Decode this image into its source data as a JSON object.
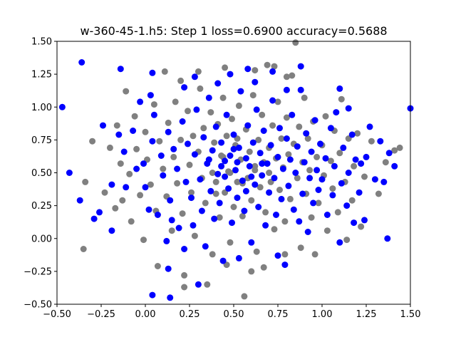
{
  "chart_data": {
    "type": "scatter",
    "title": "w-360-45-1.h5: Step 1 loss=0.6900 accuracy=0.5688",
    "xlabel": "",
    "ylabel": "",
    "xlim": [
      -0.5,
      1.5
    ],
    "ylim": [
      -0.5,
      1.5
    ],
    "x_ticks": [
      -0.5,
      -0.25,
      0.0,
      0.25,
      0.5,
      0.75,
      1.0,
      1.25,
      1.5
    ],
    "x_tick_labels": [
      "−0.50",
      "−0.25",
      "0.00",
      "0.25",
      "0.50",
      "0.75",
      "1.00",
      "1.25",
      "1.50"
    ],
    "y_ticks": [
      -0.5,
      -0.25,
      0.0,
      0.25,
      0.5,
      0.75,
      1.0,
      1.25,
      1.5
    ],
    "y_tick_labels": [
      "−0.50",
      "−0.25",
      "0.00",
      "0.25",
      "0.50",
      "0.75",
      "1.00",
      "1.25",
      "1.50"
    ],
    "grid": false,
    "legend": "none",
    "series": [
      {
        "color": "#0000ff",
        "points": [
          [
            -0.47,
            1.0
          ],
          [
            -0.43,
            0.5
          ],
          [
            -0.36,
            1.34
          ],
          [
            -0.37,
            0.29
          ],
          [
            -0.29,
            0.15
          ],
          [
            -0.26,
            0.2
          ],
          [
            -0.24,
            0.86
          ],
          [
            -0.19,
            0.41
          ],
          [
            -0.19,
            0.06
          ],
          [
            -0.15,
            0.79
          ],
          [
            -0.14,
            1.29
          ],
          [
            -0.12,
            0.66
          ],
          [
            -0.11,
            0.39
          ],
          [
            -0.07,
            0.82
          ],
          [
            -0.05,
            0.53
          ],
          [
            -0.03,
            1.04
          ],
          [
            -0.01,
            0.57
          ],
          [
            0.0,
            0.39
          ],
          [
            0.02,
            0.22
          ],
          [
            0.03,
            1.09
          ],
          [
            0.04,
            0.74
          ],
          [
            0.05,
            0.94
          ],
          [
            0.07,
            0.18
          ],
          [
            0.09,
            0.63
          ],
          [
            0.1,
            0.48
          ],
          [
            0.12,
            -0.02
          ],
          [
            0.13,
            0.81
          ],
          [
            0.14,
            0.29
          ],
          [
            0.15,
            0.14
          ],
          [
            0.16,
            0.68
          ],
          [
            0.18,
            0.53
          ],
          [
            0.19,
            0.08
          ],
          [
            0.21,
            0.89
          ],
          [
            0.22,
            -0.08
          ],
          [
            0.23,
            0.43
          ],
          [
            0.24,
            0.72
          ],
          [
            0.26,
            0.31
          ],
          [
            0.27,
            0.1
          ],
          [
            0.28,
            0.64
          ],
          [
            0.29,
            0.98
          ],
          [
            0.31,
            0.45
          ],
          [
            0.32,
            0.21
          ],
          [
            0.33,
            0.77
          ],
          [
            0.34,
            -0.06
          ],
          [
            0.35,
            0.57
          ],
          [
            0.36,
            1.07
          ],
          [
            0.37,
            0.36
          ],
          [
            0.38,
            0.67
          ],
          [
            0.39,
            0.15
          ],
          [
            0.4,
            0.85
          ],
          [
            0.41,
            0.49
          ],
          [
            0.42,
            0.27
          ],
          [
            0.43,
            0.73
          ],
          [
            0.44,
            -0.17
          ],
          [
            0.45,
            0.59
          ],
          [
            0.46,
            0.94
          ],
          [
            0.47,
            0.38
          ],
          [
            0.48,
            0.63
          ],
          [
            0.49,
            0.12
          ],
          [
            0.5,
            0.79
          ],
          [
            0.51,
            0.52
          ],
          [
            0.52,
            0.31
          ],
          [
            0.53,
            0.69
          ],
          [
            0.54,
            1.12
          ],
          [
            0.55,
            0.44
          ],
          [
            0.56,
            0.21
          ],
          [
            0.57,
            0.61
          ],
          [
            0.58,
            0.86
          ],
          [
            0.59,
            0.55
          ],
          [
            0.6,
            -0.03
          ],
          [
            0.61,
            0.73
          ],
          [
            0.62,
            0.41
          ],
          [
            0.63,
            0.98
          ],
          [
            0.64,
            0.24
          ],
          [
            0.65,
            0.65
          ],
          [
            0.66,
            0.48
          ],
          [
            0.67,
            0.82
          ],
          [
            0.68,
            0.1
          ],
          [
            0.69,
            0.57
          ],
          [
            0.7,
            0.35
          ],
          [
            0.71,
            0.71
          ],
          [
            0.72,
            1.05
          ],
          [
            0.73,
            0.46
          ],
          [
            0.74,
            0.18
          ],
          [
            0.75,
            0.62
          ],
          [
            0.76,
            0.84
          ],
          [
            0.77,
            0.3
          ],
          [
            0.78,
            0.53
          ],
          [
            0.79,
            -0.2
          ],
          [
            0.8,
            0.76
          ],
          [
            0.81,
            0.4
          ],
          [
            0.82,
            0.6
          ],
          [
            0.83,
            0.94
          ],
          [
            0.84,
            0.22
          ],
          [
            0.85,
            0.5
          ],
          [
            0.86,
            0.7
          ],
          [
            0.87,
            0.13
          ],
          [
            0.88,
            1.13
          ],
          [
            0.89,
            0.34
          ],
          [
            0.9,
            0.58
          ],
          [
            0.91,
            0.8
          ],
          [
            0.92,
            0.05
          ],
          [
            0.93,
            0.46
          ],
          [
            0.94,
            0.66
          ],
          [
            0.95,
            0.27
          ],
          [
            0.96,
            0.9
          ],
          [
            0.97,
            0.52
          ],
          [
            0.98,
            0.37
          ],
          [
            0.99,
            0.72
          ],
          [
            1.0,
            0.45
          ],
          [
            1.02,
            0.61
          ],
          [
            1.03,
            0.18
          ],
          [
            1.05,
            0.84
          ],
          [
            1.06,
            0.33
          ],
          [
            1.07,
            0.55
          ],
          [
            1.08,
            0.96
          ],
          [
            1.1,
            -0.03
          ],
          [
            1.11,
            0.42
          ],
          [
            1.12,
            0.69
          ],
          [
            1.14,
            0.25
          ],
          [
            1.15,
            0.5
          ],
          [
            1.17,
            0.79
          ],
          [
            1.18,
            0.12
          ],
          [
            1.19,
            0.6
          ],
          [
            1.21,
            0.35
          ],
          [
            1.22,
            0.57
          ],
          [
            1.24,
            0.14
          ],
          [
            1.25,
            0.62
          ],
          [
            1.27,
            0.85
          ],
          [
            1.3,
            0.45
          ],
          [
            1.33,
            0.74
          ],
          [
            1.35,
            0.43
          ],
          [
            1.37,
            0.0
          ],
          [
            1.38,
            0.65
          ],
          [
            1.41,
            0.55
          ],
          [
            1.5,
            0.99
          ],
          [
            0.58,
            1.29
          ],
          [
            0.72,
            1.27
          ],
          [
            0.88,
            1.31
          ],
          [
            0.48,
            1.25
          ],
          [
            0.28,
            1.23
          ],
          [
            0.04,
            1.26
          ],
          [
            0.14,
            -0.45
          ],
          [
            0.04,
            -0.43
          ],
          [
            0.13,
            -0.23
          ],
          [
            0.3,
            -0.35
          ],
          [
            0.53,
            -0.15
          ],
          [
            0.75,
            -0.13
          ],
          [
            0.41,
            1.18
          ],
          [
            0.62,
            1.19
          ],
          [
            0.8,
            1.13
          ],
          [
            0.22,
            1.15
          ],
          [
            1.15,
            0.99
          ],
          [
            1.1,
            1.14
          ],
          [
            0.52,
            0.58
          ],
          [
            0.45,
            0.47
          ],
          [
            0.57,
            0.36
          ],
          [
            0.5,
            0.68
          ],
          [
            0.43,
            0.55
          ],
          [
            0.6,
            0.47
          ],
          [
            0.36,
            0.6
          ],
          [
            0.66,
            0.57
          ]
        ]
      },
      {
        "color": "#808080",
        "points": [
          [
            -0.35,
            -0.08
          ],
          [
            -0.34,
            0.43
          ],
          [
            -0.3,
            0.74
          ],
          [
            -0.23,
            0.35
          ],
          [
            -0.2,
            0.69
          ],
          [
            -0.17,
            0.23
          ],
          [
            -0.16,
            0.86
          ],
          [
            -0.14,
            0.57
          ],
          [
            -0.13,
            0.29
          ],
          [
            -0.11,
            1.12
          ],
          [
            -0.09,
            0.49
          ],
          [
            -0.08,
            0.13
          ],
          [
            -0.06,
            0.93
          ],
          [
            -0.05,
            0.68
          ],
          [
            -0.03,
            0.33
          ],
          [
            -0.01,
            -0.01
          ],
          [
            0.0,
            0.81
          ],
          [
            0.01,
            0.6
          ],
          [
            0.03,
            0.41
          ],
          [
            0.05,
            1.02
          ],
          [
            0.06,
            0.21
          ],
          [
            0.07,
            -0.21
          ],
          [
            0.08,
            0.74
          ],
          [
            0.1,
            0.53
          ],
          [
            0.11,
            1.27
          ],
          [
            0.12,
            0.32
          ],
          [
            0.13,
            0.88
          ],
          [
            0.15,
            0.06
          ],
          [
            0.16,
            0.62
          ],
          [
            0.17,
            1.04
          ],
          [
            0.18,
            0.42
          ],
          [
            0.2,
            0.75
          ],
          [
            0.21,
            0.19
          ],
          [
            0.22,
            -0.28
          ],
          [
            0.24,
            0.97
          ],
          [
            0.25,
            0.56
          ],
          [
            0.26,
            0.35
          ],
          [
            0.27,
            0.78
          ],
          [
            0.28,
            0.02
          ],
          [
            0.3,
            0.66
          ],
          [
            0.31,
            1.14
          ],
          [
            0.32,
            0.46
          ],
          [
            0.33,
            0.84
          ],
          [
            0.34,
            0.27
          ],
          [
            0.36,
            0.6
          ],
          [
            0.37,
            0.96
          ],
          [
            0.38,
            -0.12
          ],
          [
            0.39,
            0.73
          ],
          [
            0.4,
            0.43
          ],
          [
            0.41,
            0.87
          ],
          [
            0.42,
            0.16
          ],
          [
            0.43,
            0.63
          ],
          [
            0.44,
            1.07
          ],
          [
            0.45,
            0.35
          ],
          [
            0.46,
            0.78
          ],
          [
            0.47,
            0.51
          ],
          [
            0.48,
            -0.03
          ],
          [
            0.49,
            0.91
          ],
          [
            0.5,
            0.24
          ],
          [
            0.51,
            0.71
          ],
          [
            0.52,
            0.43
          ],
          [
            0.53,
            1.01
          ],
          [
            0.54,
            0.6
          ],
          [
            0.55,
            0.17
          ],
          [
            0.56,
            -0.44
          ],
          [
            0.57,
            0.83
          ],
          [
            0.58,
            0.46
          ],
          [
            0.59,
            0.66
          ],
          [
            0.6,
            0.29
          ],
          [
            0.61,
            1.09
          ],
          [
            0.62,
            0.52
          ],
          [
            0.63,
            -0.1
          ],
          [
            0.64,
            0.75
          ],
          [
            0.65,
            0.39
          ],
          [
            0.66,
            0.94
          ],
          [
            0.67,
            0.58
          ],
          [
            0.68,
            0.2
          ],
          [
            0.69,
            1.32
          ],
          [
            0.7,
            0.69
          ],
          [
            0.71,
            0.43
          ],
          [
            0.72,
            0.86
          ],
          [
            0.73,
            0.07
          ],
          [
            0.74,
            0.61
          ],
          [
            0.75,
            1.04
          ],
          [
            0.76,
            0.37
          ],
          [
            0.77,
            0.76
          ],
          [
            0.78,
            0.54
          ],
          [
            0.79,
            0.13
          ],
          [
            0.8,
            0.92
          ],
          [
            0.81,
            0.64
          ],
          [
            0.82,
            0.3
          ],
          [
            0.83,
            1.24
          ],
          [
            0.84,
            0.72
          ],
          [
            0.85,
            1.49
          ],
          [
            0.86,
            0.46
          ],
          [
            0.87,
            0.85
          ],
          [
            0.88,
            -0.07
          ],
          [
            0.89,
            0.58
          ],
          [
            0.9,
            1.07
          ],
          [
            0.91,
            0.34
          ],
          [
            0.92,
            0.76
          ],
          [
            0.93,
            0.52
          ],
          [
            0.94,
            0.16
          ],
          [
            0.95,
            0.89
          ],
          [
            0.96,
            -0.12
          ],
          [
            0.97,
            0.62
          ],
          [
            0.98,
            0.27
          ],
          [
            1.0,
            0.71
          ],
          [
            1.01,
            0.48
          ],
          [
            1.02,
            0.93
          ],
          [
            1.03,
            0.06
          ],
          [
            1.05,
            0.59
          ],
          [
            1.06,
            0.38
          ],
          [
            1.07,
            0.82
          ],
          [
            1.09,
            0.2
          ],
          [
            1.1,
            0.65
          ],
          [
            1.11,
            1.06
          ],
          [
            1.13,
            0.43
          ],
          [
            1.14,
            -0.01
          ],
          [
            1.15,
            0.76
          ],
          [
            1.17,
            0.29
          ],
          [
            1.18,
            0.55
          ],
          [
            1.2,
            0.8
          ],
          [
            1.22,
            0.09
          ],
          [
            1.24,
            0.47
          ],
          [
            1.28,
            0.74
          ],
          [
            1.32,
            0.34
          ],
          [
            1.36,
            0.58
          ],
          [
            1.41,
            0.67
          ],
          [
            1.44,
            0.69
          ],
          [
            0.3,
            1.27
          ],
          [
            0.45,
            1.3
          ],
          [
            0.62,
            1.28
          ],
          [
            0.73,
            1.31
          ],
          [
            0.8,
            1.23
          ],
          [
            0.2,
            1.2
          ],
          [
            0.35,
            -0.35
          ],
          [
            0.46,
            -0.2
          ],
          [
            0.6,
            -0.25
          ],
          [
            0.67,
            -0.22
          ],
          [
            0.79,
            -0.12
          ],
          [
            0.22,
            -0.37
          ],
          [
            0.48,
            0.5
          ],
          [
            0.55,
            0.42
          ],
          [
            0.44,
            0.62
          ],
          [
            0.62,
            0.55
          ],
          [
            0.38,
            0.5
          ],
          [
            0.52,
            0.76
          ],
          [
            0.7,
            0.5
          ],
          [
            0.4,
            0.34
          ]
        ]
      }
    ]
  }
}
